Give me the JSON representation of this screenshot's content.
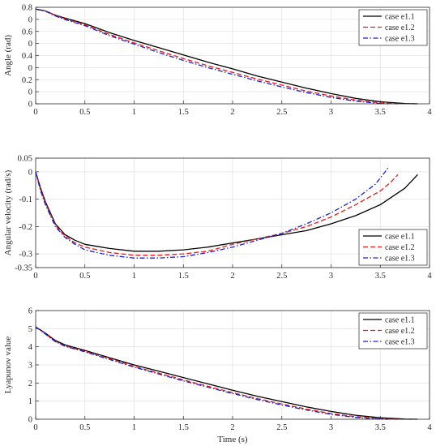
{
  "chart_data": [
    {
      "type": "line",
      "ylabel": "Angle (rad)",
      "xlabel": "",
      "xlim": [
        0,
        4
      ],
      "ylim": [
        0,
        0.8
      ],
      "xticks": [
        "0",
        "0.5",
        "1",
        "1.5",
        "2",
        "2.5",
        "3",
        "3.5",
        "4"
      ],
      "yticks": [
        {
          "v": 0,
          "label": "0"
        },
        {
          "v": 0.1,
          "label": "0"
        },
        {
          "v": 0.2,
          "label": "0.2"
        },
        {
          "v": 0.3,
          "label": "0"
        },
        {
          "v": 0.4,
          "label": "0.4"
        },
        {
          "v": 0.5,
          "label": "0"
        },
        {
          "v": 0.6,
          "label": "0.6"
        },
        {
          "v": 0.7,
          "label": "0"
        },
        {
          "v": 0.8,
          "label": "0.8"
        }
      ],
      "grid": true,
      "legend_loc": "top-right",
      "series": [
        {
          "name": "case e1.1",
          "color": "#000000",
          "dash": "solid",
          "x": [
            0,
            0.1,
            0.2,
            0.3,
            0.5,
            0.75,
            1.0,
            1.25,
            1.5,
            1.75,
            2.0,
            2.25,
            2.5,
            2.75,
            3.0,
            3.25,
            3.5,
            3.75,
            3.88
          ],
          "y": [
            0.785,
            0.77,
            0.735,
            0.71,
            0.665,
            0.59,
            0.525,
            0.465,
            0.405,
            0.345,
            0.29,
            0.23,
            0.18,
            0.13,
            0.085,
            0.045,
            0.017,
            0.003,
            0.0
          ]
        },
        {
          "name": "case e1.2",
          "color": "#e41a1c",
          "dash": "dashed",
          "x": [
            0,
            0.1,
            0.2,
            0.3,
            0.5,
            0.75,
            1.0,
            1.25,
            1.5,
            1.75,
            2.0,
            2.25,
            2.5,
            2.75,
            3.0,
            3.25,
            3.5,
            3.68
          ],
          "y": [
            0.785,
            0.77,
            0.732,
            0.703,
            0.655,
            0.575,
            0.505,
            0.44,
            0.375,
            0.315,
            0.26,
            0.205,
            0.155,
            0.105,
            0.065,
            0.03,
            0.008,
            0.0
          ]
        },
        {
          "name": "case e1.3",
          "color": "#1f1fd6",
          "dash": "dashdot",
          "x": [
            0,
            0.1,
            0.2,
            0.3,
            0.5,
            0.75,
            1.0,
            1.25,
            1.5,
            1.75,
            2.0,
            2.25,
            2.5,
            2.75,
            3.0,
            3.25,
            3.5,
            3.58
          ],
          "y": [
            0.785,
            0.768,
            0.728,
            0.698,
            0.648,
            0.565,
            0.495,
            0.425,
            0.36,
            0.3,
            0.245,
            0.19,
            0.14,
            0.093,
            0.053,
            0.022,
            0.003,
            0.0
          ]
        }
      ]
    },
    {
      "type": "line",
      "ylabel": "Angular velocity (rad/s)",
      "xlabel": "",
      "xlim": [
        0,
        4
      ],
      "ylim": [
        -0.35,
        0.05
      ],
      "xticks": [
        "0",
        "0.5",
        "1",
        "1.5",
        "2",
        "2.5",
        "3",
        "3.5",
        "4"
      ],
      "yticks": [
        {
          "v": 0.05,
          "label": "0.05"
        },
        {
          "v": 0,
          "label": "0"
        },
        {
          "v": -0.1,
          "label": "-0.1"
        },
        {
          "v": -0.2,
          "label": "-0.2"
        },
        {
          "v": -0.3,
          "label": "-0.3"
        },
        {
          "v": -0.35,
          "label": "-0.35"
        }
      ],
      "grid": true,
      "legend_loc": "bottom-right",
      "series": [
        {
          "name": "case e1.1",
          "color": "#000000",
          "dash": "solid",
          "x": [
            0,
            0.05,
            0.1,
            0.15,
            0.2,
            0.3,
            0.4,
            0.5,
            0.75,
            1.0,
            1.25,
            1.5,
            1.75,
            2.0,
            2.25,
            2.5,
            2.75,
            3.0,
            3.25,
            3.5,
            3.75,
            3.88
          ],
          "y": [
            0,
            -0.06,
            -0.11,
            -0.15,
            -0.19,
            -0.23,
            -0.25,
            -0.265,
            -0.28,
            -0.29,
            -0.29,
            -0.285,
            -0.275,
            -0.26,
            -0.245,
            -0.23,
            -0.215,
            -0.19,
            -0.16,
            -0.12,
            -0.06,
            -0.01
          ]
        },
        {
          "name": "case e1.2",
          "color": "#e41a1c",
          "dash": "dashed",
          "x": [
            0,
            0.05,
            0.1,
            0.15,
            0.2,
            0.3,
            0.4,
            0.5,
            0.75,
            1.0,
            1.25,
            1.5,
            1.75,
            2.0,
            2.25,
            2.5,
            2.75,
            3.0,
            3.25,
            3.5,
            3.6,
            3.68
          ],
          "y": [
            0,
            -0.065,
            -0.115,
            -0.155,
            -0.195,
            -0.235,
            -0.26,
            -0.275,
            -0.295,
            -0.305,
            -0.305,
            -0.3,
            -0.29,
            -0.265,
            -0.245,
            -0.225,
            -0.2,
            -0.165,
            -0.12,
            -0.07,
            -0.04,
            -0.01
          ]
        },
        {
          "name": "case e1.3",
          "color": "#1f1fd6",
          "dash": "dashdot",
          "x": [
            0,
            0.05,
            0.1,
            0.15,
            0.2,
            0.3,
            0.4,
            0.5,
            0.75,
            1.0,
            1.25,
            1.5,
            1.75,
            2.0,
            2.25,
            2.5,
            2.75,
            3.0,
            3.25,
            3.45,
            3.55,
            3.58
          ],
          "y": [
            0,
            -0.07,
            -0.12,
            -0.16,
            -0.2,
            -0.24,
            -0.265,
            -0.285,
            -0.305,
            -0.315,
            -0.315,
            -0.31,
            -0.295,
            -0.275,
            -0.25,
            -0.225,
            -0.19,
            -0.15,
            -0.1,
            -0.045,
            0.0,
            0.015
          ]
        }
      ]
    },
    {
      "type": "line",
      "ylabel": "Lyapunov value",
      "xlabel": "Time (s)",
      "xlim": [
        0,
        4
      ],
      "ylim": [
        0,
        6
      ],
      "xticks": [
        "0",
        "0.5",
        "1",
        "1.5",
        "2",
        "2.5",
        "3",
        "3.5",
        "4"
      ],
      "yticks": [
        {
          "v": 0,
          "label": "0"
        },
        {
          "v": 1,
          "label": "1"
        },
        {
          "v": 2,
          "label": "2"
        },
        {
          "v": 3,
          "label": "3"
        },
        {
          "v": 4,
          "label": "4"
        },
        {
          "v": 5,
          "label": "5"
        },
        {
          "v": 6,
          "label": "6"
        }
      ],
      "grid": true,
      "legend_loc": "top-right",
      "series": [
        {
          "name": "case e1.1",
          "color": "#000000",
          "dash": "solid",
          "x": [
            0,
            0.1,
            0.2,
            0.3,
            0.5,
            0.75,
            1.0,
            1.25,
            1.5,
            1.75,
            2.0,
            2.25,
            2.5,
            2.75,
            3.0,
            3.25,
            3.5,
            3.75,
            3.88
          ],
          "y": [
            5.1,
            4.75,
            4.35,
            4.1,
            3.8,
            3.4,
            3.0,
            2.65,
            2.3,
            1.95,
            1.6,
            1.27,
            0.97,
            0.68,
            0.43,
            0.22,
            0.08,
            0.01,
            0.0
          ]
        },
        {
          "name": "case e1.2",
          "color": "#e41a1c",
          "dash": "dashed",
          "x": [
            0,
            0.1,
            0.2,
            0.3,
            0.5,
            0.75,
            1.0,
            1.25,
            1.5,
            1.75,
            2.0,
            2.25,
            2.5,
            2.75,
            3.0,
            3.25,
            3.5,
            3.68
          ],
          "y": [
            5.1,
            4.72,
            4.3,
            4.05,
            3.75,
            3.35,
            2.92,
            2.55,
            2.17,
            1.82,
            1.47,
            1.14,
            0.84,
            0.56,
            0.32,
            0.14,
            0.03,
            0.0
          ]
        },
        {
          "name": "case e1.3",
          "color": "#1f1fd6",
          "dash": "dashdot",
          "x": [
            0,
            0.1,
            0.2,
            0.3,
            0.5,
            0.75,
            1.0,
            1.25,
            1.5,
            1.75,
            2.0,
            2.25,
            2.5,
            2.75,
            3.0,
            3.25,
            3.5,
            3.58
          ],
          "y": [
            5.1,
            4.7,
            4.28,
            4.03,
            3.72,
            3.3,
            2.88,
            2.5,
            2.12,
            1.77,
            1.42,
            1.09,
            0.79,
            0.51,
            0.27,
            0.1,
            0.01,
            0.0
          ]
        }
      ]
    }
  ]
}
